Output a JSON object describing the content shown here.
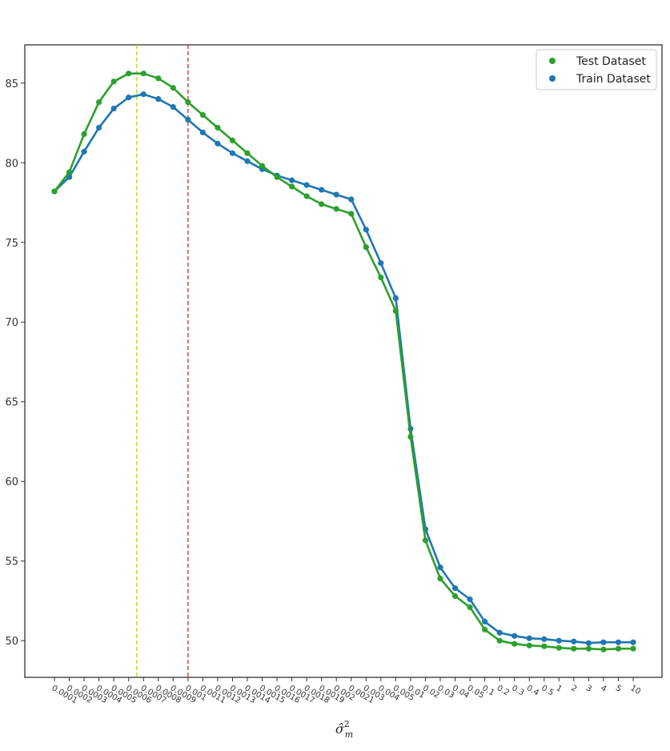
{
  "chart_data": {
    "type": "line",
    "title": "",
    "xlabel": "σ̂²ₘ",
    "xlabel_parts": {
      "base": "σ̂",
      "sup": "2",
      "sub": "m"
    },
    "ylabel": "",
    "ylim": [
      47.7,
      87.4
    ],
    "yticks": [
      50,
      55,
      60,
      65,
      70,
      75,
      80,
      85
    ],
    "grid": false,
    "legend_position": "top-right",
    "categories": [
      "0.0001",
      "0.0002",
      "0.0003",
      "0.0004",
      "0.0005",
      "0.0006",
      "0.0007",
      "0.0008",
      "0.0009",
      "0.001",
      "0.0011",
      "0.0012",
      "0.0013",
      "0.0014",
      "0.0015",
      "0.0016",
      "0.0017",
      "0.0018",
      "0.0019",
      "0.002",
      "0.0021",
      "0.003",
      "0.004",
      "0.005",
      "0.01",
      "0.02",
      "0.03",
      "0.04",
      "0.05",
      "0.1",
      "0.2",
      "0.3",
      "0.4",
      "0.5",
      "1",
      "2",
      "3",
      "4",
      "5",
      "10"
    ],
    "series": [
      {
        "name": "Test Dataset",
        "color": "#2ca02c",
        "values": [
          78.2,
          79.4,
          81.8,
          83.8,
          85.1,
          85.6,
          85.6,
          85.3,
          84.7,
          83.8,
          83.0,
          82.2,
          81.4,
          80.6,
          79.8,
          79.1,
          78.5,
          77.9,
          77.4,
          77.1,
          76.8,
          74.7,
          72.8,
          70.7,
          62.8,
          56.3,
          53.9,
          52.8,
          52.1,
          50.7,
          50.0,
          49.8,
          49.7,
          49.65,
          49.55,
          49.5,
          49.5,
          49.45,
          49.5,
          49.5
        ]
      },
      {
        "name": "Train Dataset",
        "color": "#1f77b4",
        "values": [
          78.2,
          79.1,
          80.7,
          82.2,
          83.4,
          84.1,
          84.3,
          84.0,
          83.5,
          82.7,
          81.9,
          81.2,
          80.6,
          80.1,
          79.6,
          79.2,
          78.9,
          78.6,
          78.3,
          78.0,
          77.7,
          75.8,
          73.7,
          71.5,
          63.3,
          57.0,
          54.6,
          53.3,
          52.6,
          51.2,
          50.5,
          50.3,
          50.15,
          50.1,
          50.0,
          49.95,
          49.85,
          49.9,
          49.9,
          49.9
        ]
      }
    ],
    "reference_lines": [
      {
        "x_index": 5.55,
        "color": "#c8c81e",
        "style": "dashed"
      },
      {
        "x_index": 9,
        "color": "#d62728",
        "style": "dashed"
      }
    ]
  }
}
